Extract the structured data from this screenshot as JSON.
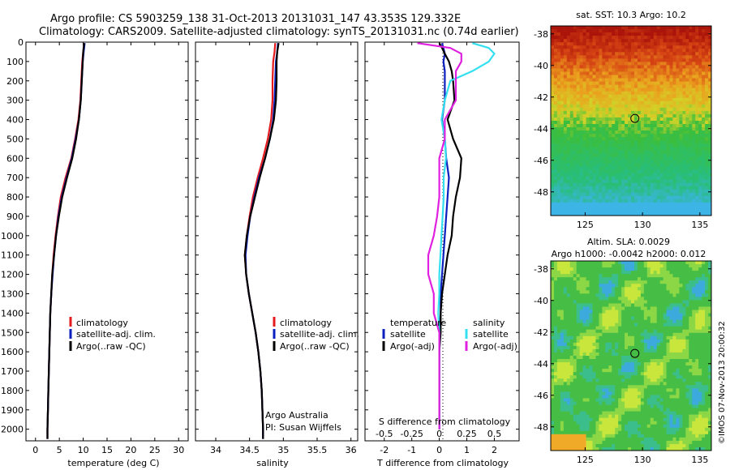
{
  "title": {
    "line1": "Argo profile: CS 5903259_138 31-Oct-2013 20131031_147 43.353S 129.332E",
    "line2": "Climatology: CARS2009. Satellite-adjusted climatology: synTS_20131031.nc (0.74d earlier)"
  },
  "colors": {
    "climatology": "#e41a1c",
    "satellite": "#0b1fbf",
    "argo": "#000000",
    "sat_salinity": "#33e0f0",
    "argo_salinity": "#e020e0"
  },
  "yaxis": {
    "ticks": [
      0,
      100,
      200,
      300,
      400,
      500,
      600,
      700,
      800,
      900,
      1000,
      1100,
      1200,
      1300,
      1400,
      1500,
      1600,
      1700,
      1800,
      1900,
      2000
    ],
    "range": [
      0,
      2060
    ]
  },
  "chart_data": [
    {
      "type": "line",
      "xlabel": "temperature (deg C)",
      "xticks": [
        "0",
        "5",
        "10",
        "15",
        "20",
        "25",
        "30"
      ],
      "xlim": [
        -2,
        32
      ],
      "legend": [
        "climatology",
        "satellite-adj. clim.",
        "Argo(..raw -QC)"
      ],
      "depth": [
        5,
        50,
        100,
        200,
        300,
        400,
        500,
        600,
        700,
        800,
        900,
        1000,
        1100,
        1200,
        1300,
        1400,
        1500,
        1600,
        1700,
        1800,
        1900,
        2000,
        2050
      ],
      "series": [
        {
          "name": "climatology",
          "values": [
            10.2,
            10.0,
            9.8,
            9.6,
            9.4,
            9.0,
            8.3,
            7.5,
            6.3,
            5.3,
            4.7,
            4.2,
            3.8,
            3.5,
            3.3,
            3.1,
            3.0,
            2.9,
            2.8,
            2.7,
            2.6,
            2.5,
            2.5
          ]
        },
        {
          "name": "satellite-adj. clim.",
          "values": [
            10.3,
            10.1,
            9.9,
            9.7,
            9.5,
            9.1,
            8.4,
            7.6,
            6.5,
            5.5,
            4.8,
            4.3,
            3.9,
            3.6,
            3.3,
            3.1,
            3.0,
            2.9,
            2.8,
            2.7,
            2.6,
            2.5,
            2.5
          ]
        },
        {
          "name": "Argo(..raw -QC)",
          "values": [
            10.2,
            10.0,
            9.9,
            9.7,
            9.5,
            9.1,
            8.5,
            7.7,
            6.6,
            5.6,
            4.9,
            4.3,
            3.9,
            3.5,
            3.3,
            3.1,
            3.0,
            2.9,
            2.8,
            2.7,
            2.6,
            2.5,
            2.5
          ]
        }
      ]
    },
    {
      "type": "line",
      "xlabel": "salinity",
      "xticks": [
        "34",
        "34.5",
        "35",
        "35.5",
        "36"
      ],
      "xlim": [
        33.7,
        36.1
      ],
      "legend": [
        "climatology",
        "satellite-adj. clim.",
        "Argo(..raw -QC)"
      ],
      "annotation": [
        "Argo Australia",
        "PI: Susan Wijffels"
      ],
      "depth": [
        5,
        50,
        100,
        200,
        300,
        400,
        500,
        600,
        700,
        800,
        900,
        1000,
        1100,
        1200,
        1300,
        1400,
        1500,
        1600,
        1700,
        1800,
        1900,
        2000,
        2050
      ],
      "series": [
        {
          "name": "climatology",
          "values": [
            34.88,
            34.87,
            34.85,
            34.84,
            34.84,
            34.82,
            34.77,
            34.7,
            34.62,
            34.55,
            34.5,
            34.46,
            34.43,
            34.45,
            34.49,
            34.54,
            34.59,
            34.63,
            34.66,
            34.68,
            34.69,
            34.7,
            34.7
          ]
        },
        {
          "name": "satellite-adj. clim.",
          "values": [
            34.92,
            34.91,
            34.89,
            34.88,
            34.87,
            34.85,
            34.8,
            34.73,
            34.64,
            34.57,
            34.51,
            34.47,
            34.44,
            34.45,
            34.49,
            34.54,
            34.59,
            34.63,
            34.66,
            34.68,
            34.69,
            34.7,
            34.7
          ]
        },
        {
          "name": "Argo(..raw -QC)",
          "values": [
            34.93,
            34.91,
            34.9,
            34.9,
            34.89,
            34.86,
            34.8,
            34.73,
            34.65,
            34.58,
            34.51,
            34.46,
            34.43,
            34.45,
            34.49,
            34.54,
            34.59,
            34.63,
            34.66,
            34.68,
            34.69,
            34.7,
            34.7
          ]
        }
      ]
    },
    {
      "type": "line",
      "xlabel": "T difference from climatology",
      "xlabel_top": "S difference from climatology",
      "xticks": [
        "-2",
        "-1",
        "0",
        "1",
        "2"
      ],
      "xticks_top": [
        "-0.5",
        "-0.25",
        "0",
        "0.25",
        "0.5"
      ],
      "xlim": [
        -2.7,
        2.9
      ],
      "legend_temperature": [
        "temperature",
        "satellite",
        "Argo(-adj)"
      ],
      "legend_salinity": [
        "salinity",
        "satellite",
        "Argo(-adj)"
      ],
      "depth": [
        5,
        30,
        60,
        100,
        150,
        200,
        300,
        400,
        500,
        600,
        700,
        800,
        900,
        1000,
        1100,
        1200,
        1300,
        1400,
        1500,
        1600,
        1700,
        1800,
        1900,
        2000
      ],
      "series": [
        {
          "name": "temperature satellite",
          "values": [
            0.1,
            0.15,
            0.2,
            0.15,
            0.2,
            0.2,
            0.2,
            0.1,
            0.2,
            0.25,
            0.35,
            0.3,
            0.25,
            0.2,
            0.15,
            0.1,
            0.05,
            0.05,
            0.0,
            0.0,
            0.0,
            0.0,
            0.0,
            0.0
          ]
        },
        {
          "name": "temperature Argo(-adj)",
          "values": [
            0.0,
            0.1,
            0.2,
            0.35,
            0.45,
            0.5,
            0.55,
            0.3,
            0.5,
            0.8,
            0.75,
            0.6,
            0.5,
            0.45,
            0.3,
            0.2,
            0.1,
            0.05,
            0.05,
            0.0,
            0.0,
            0.0,
            0.0,
            0.0
          ]
        },
        {
          "name": "salinity satellite",
          "values": [
            0.3,
            0.45,
            0.5,
            0.45,
            0.3,
            0.1,
            0.05,
            0.02,
            0.05,
            0.06,
            0.04,
            0.04,
            0.03,
            0.02,
            0.01,
            0.0,
            0.0,
            -0.01,
            0.0,
            0.0,
            0.0,
            0.0,
            0.0,
            0.0
          ]
        },
        {
          "name": "salinity Argo(-adj)",
          "values": [
            -0.2,
            0.1,
            0.2,
            0.2,
            0.15,
            0.15,
            0.15,
            0.05,
            0.05,
            0.0,
            0.0,
            0.0,
            -0.02,
            -0.05,
            -0.1,
            -0.1,
            -0.05,
            -0.05,
            0.0,
            0.0,
            0.0,
            0.0,
            0.0,
            0.0
          ]
        }
      ]
    }
  ],
  "maps": [
    {
      "type": "heatmap",
      "title": "sat. SST: 10.3 Argo: 10.2",
      "xticks": [
        "125",
        "130",
        "135"
      ],
      "yticks": [
        "-38",
        "-40",
        "-42",
        "-44",
        "-46",
        "-48"
      ],
      "xlim": [
        122,
        136
      ],
      "ylim": [
        -49.5,
        -37.5
      ],
      "marker": {
        "lon": 129.332,
        "lat": -43.353
      }
    },
    {
      "type": "heatmap",
      "title_line1": "Altim. SLA: 0.0029",
      "title_line2": "Argo h1000: -0.0042 h2000: 0.012",
      "xticks": [
        "125",
        "130",
        "135"
      ],
      "yticks": [
        "-38",
        "-40",
        "-42",
        "-44",
        "-46",
        "-48"
      ],
      "xlim": [
        122,
        136
      ],
      "ylim": [
        -49.5,
        -37.5
      ],
      "marker": {
        "lon": 129.332,
        "lat": -43.353
      }
    }
  ],
  "footer": "©IMOS 07-Nov-2013 20:00:32"
}
